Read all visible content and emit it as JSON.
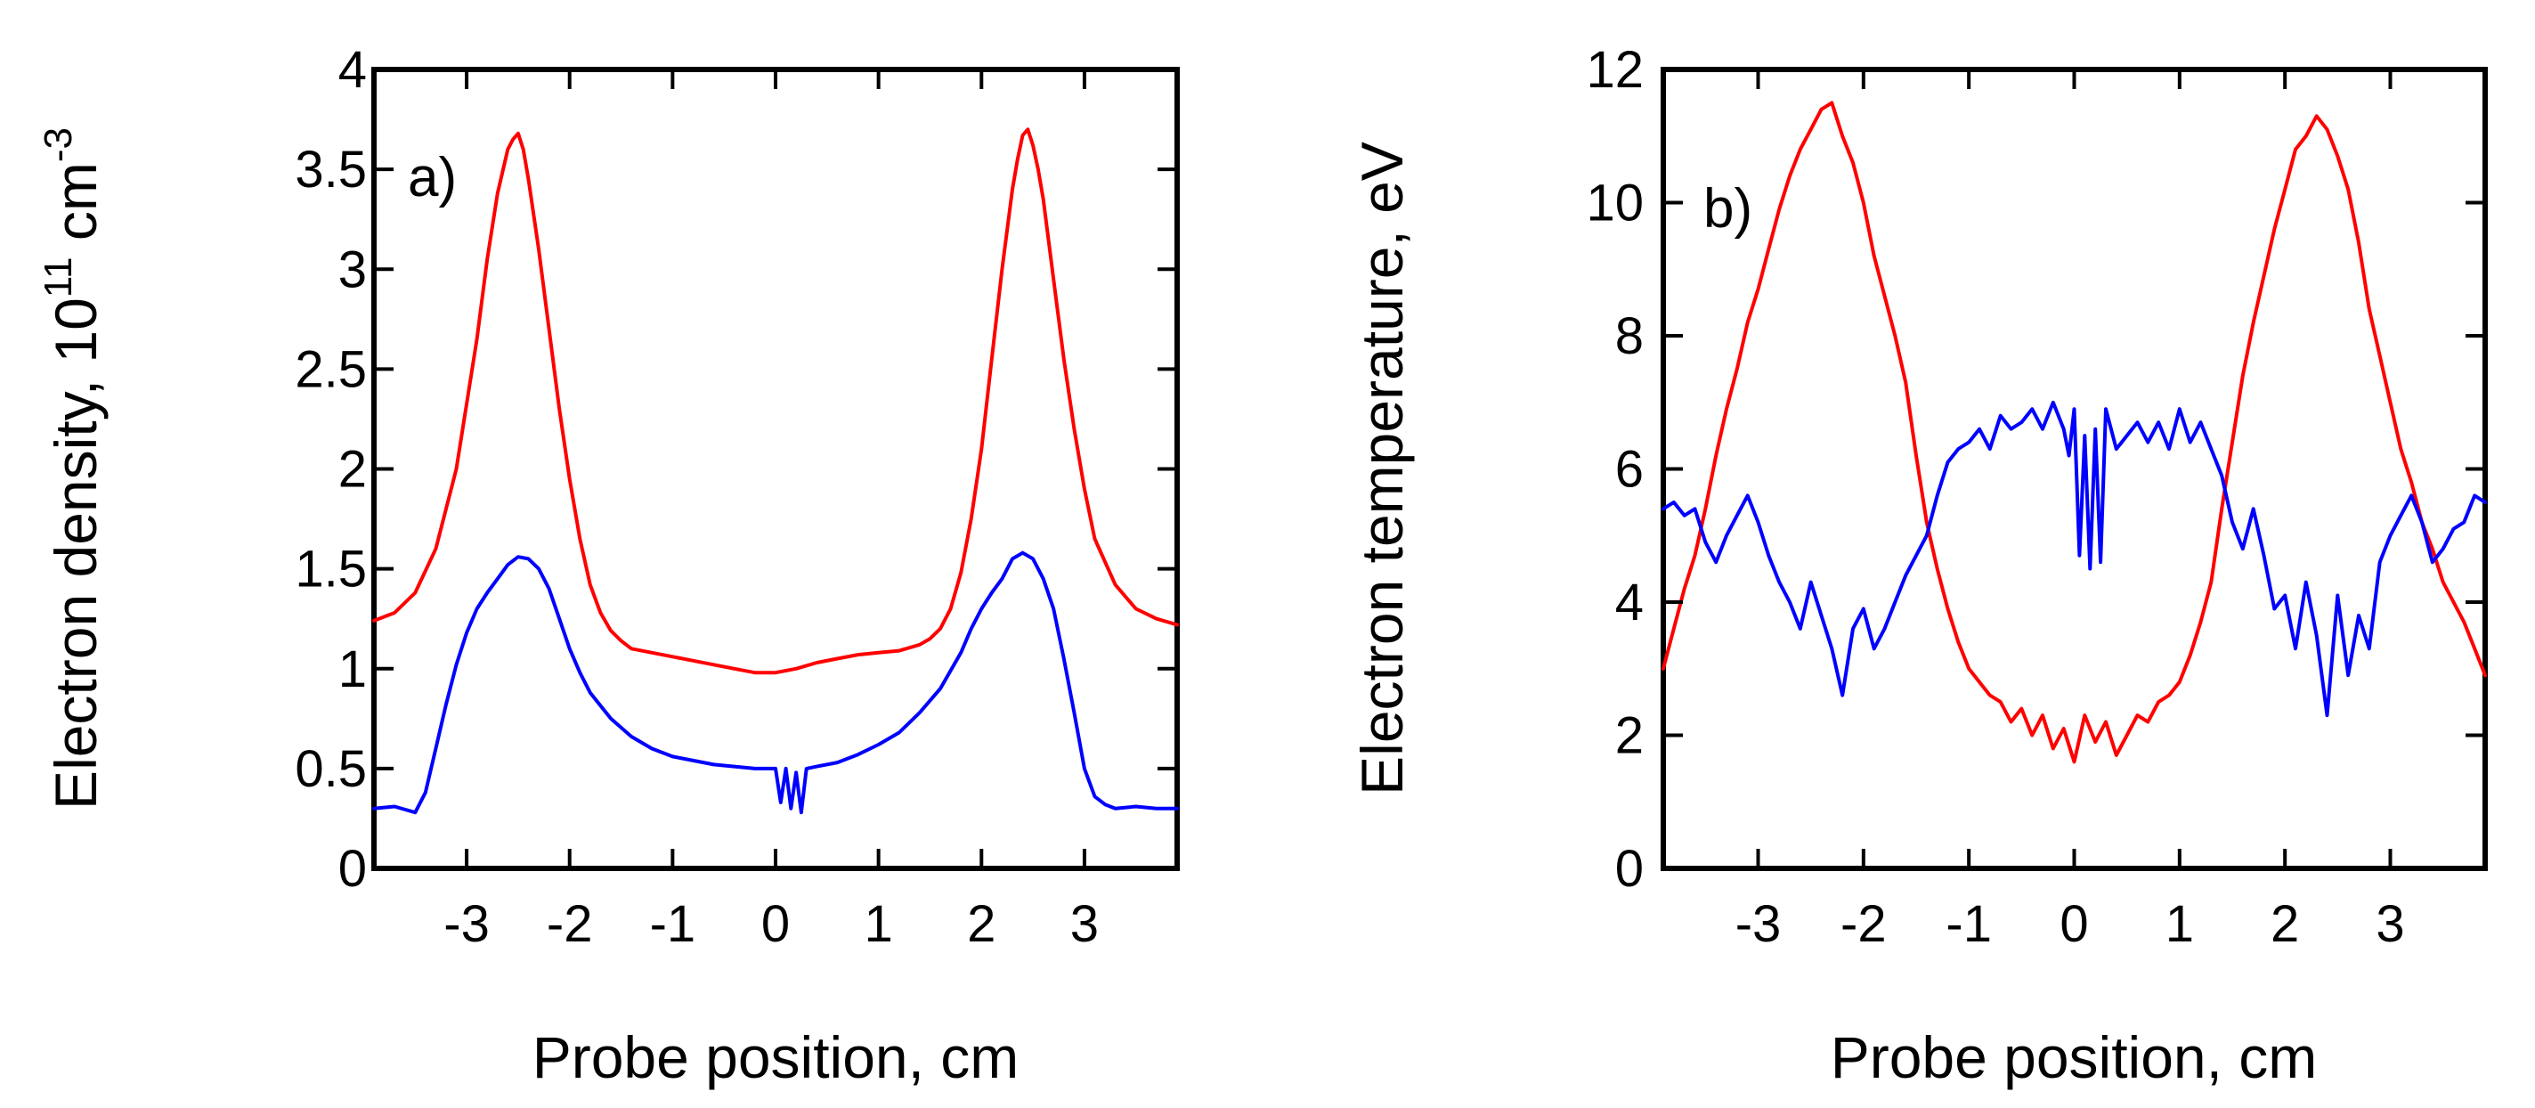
{
  "colors": {
    "red": "#ff0000",
    "blue": "#0000ff",
    "axes": "#000000",
    "background": "#ffffff"
  },
  "chart_data": [
    {
      "id": "a",
      "type": "line",
      "panel_label": "a)",
      "xlabel": "Probe position, cm",
      "ylabel": {
        "prefix": "Electron density, 10",
        "sup1": "11",
        "mid": " cm",
        "sup2": "-3"
      },
      "xlim": [
        -3.9,
        3.9
      ],
      "ylim": [
        0,
        4
      ],
      "xticks": [
        -3,
        -2,
        -1,
        0,
        1,
        2,
        3
      ],
      "xtick_labels": [
        "-3",
        "-2",
        "-1",
        "0",
        "1",
        "2",
        "3"
      ],
      "yticks": [
        0,
        0.5,
        1,
        1.5,
        2,
        2.5,
        3,
        3.5,
        4
      ],
      "ytick_labels": [
        "0",
        "0.5",
        "1",
        "1.5",
        "2",
        "2.5",
        "3",
        "3.5",
        "4"
      ],
      "series": [
        {
          "name": "red",
          "color": "#ff0000",
          "x": [
            -3.9,
            -3.7,
            -3.5,
            -3.3,
            -3.1,
            -2.9,
            -2.8,
            -2.7,
            -2.6,
            -2.55,
            -2.5,
            -2.45,
            -2.4,
            -2.3,
            -2.2,
            -2.1,
            -2.0,
            -1.9,
            -1.8,
            -1.7,
            -1.6,
            -1.5,
            -1.4,
            -1.2,
            -1.0,
            -0.8,
            -0.6,
            -0.4,
            -0.2,
            0.0,
            0.2,
            0.4,
            0.6,
            0.8,
            1.0,
            1.2,
            1.4,
            1.5,
            1.6,
            1.7,
            1.8,
            1.9,
            2.0,
            2.1,
            2.2,
            2.3,
            2.35,
            2.4,
            2.45,
            2.5,
            2.55,
            2.6,
            2.7,
            2.8,
            2.9,
            3.0,
            3.1,
            3.3,
            3.5,
            3.7,
            3.9
          ],
          "y": [
            1.24,
            1.28,
            1.38,
            1.6,
            2.0,
            2.65,
            3.05,
            3.38,
            3.6,
            3.65,
            3.68,
            3.6,
            3.45,
            3.1,
            2.7,
            2.3,
            1.95,
            1.65,
            1.42,
            1.28,
            1.19,
            1.14,
            1.1,
            1.08,
            1.06,
            1.04,
            1.02,
            1.0,
            0.98,
            0.98,
            1.0,
            1.03,
            1.05,
            1.07,
            1.08,
            1.09,
            1.12,
            1.15,
            1.2,
            1.3,
            1.48,
            1.75,
            2.1,
            2.55,
            3.0,
            3.4,
            3.55,
            3.67,
            3.7,
            3.62,
            3.5,
            3.35,
            2.95,
            2.55,
            2.2,
            1.9,
            1.65,
            1.42,
            1.3,
            1.25,
            1.22
          ]
        },
        {
          "name": "blue",
          "color": "#0000ff",
          "x": [
            -3.9,
            -3.7,
            -3.5,
            -3.4,
            -3.3,
            -3.2,
            -3.1,
            -3.0,
            -2.9,
            -2.8,
            -2.7,
            -2.6,
            -2.5,
            -2.4,
            -2.3,
            -2.2,
            -2.1,
            -2.0,
            -1.9,
            -1.8,
            -1.6,
            -1.4,
            -1.2,
            -1.0,
            -0.8,
            -0.6,
            -0.4,
            -0.2,
            0.0,
            0.05,
            0.1,
            0.15,
            0.2,
            0.25,
            0.3,
            0.4,
            0.6,
            0.8,
            1.0,
            1.2,
            1.4,
            1.6,
            1.8,
            1.9,
            2.0,
            2.1,
            2.2,
            2.3,
            2.4,
            2.5,
            2.6,
            2.7,
            2.8,
            2.9,
            3.0,
            3.1,
            3.2,
            3.3,
            3.5,
            3.7,
            3.9
          ],
          "y": [
            0.3,
            0.31,
            0.28,
            0.38,
            0.6,
            0.82,
            1.02,
            1.18,
            1.3,
            1.38,
            1.45,
            1.52,
            1.56,
            1.55,
            1.5,
            1.4,
            1.25,
            1.1,
            0.98,
            0.88,
            0.75,
            0.66,
            0.6,
            0.56,
            0.54,
            0.52,
            0.51,
            0.5,
            0.5,
            0.33,
            0.5,
            0.3,
            0.48,
            0.28,
            0.5,
            0.51,
            0.53,
            0.57,
            0.62,
            0.68,
            0.78,
            0.9,
            1.08,
            1.2,
            1.3,
            1.38,
            1.45,
            1.55,
            1.58,
            1.55,
            1.45,
            1.3,
            1.05,
            0.78,
            0.5,
            0.36,
            0.32,
            0.3,
            0.31,
            0.3,
            0.3
          ]
        }
      ]
    },
    {
      "id": "b",
      "type": "line",
      "panel_label": "b)",
      "xlabel": "Probe position, cm",
      "ylabel": {
        "prefix": "Electron temperature, eV"
      },
      "xlim": [
        -3.9,
        3.9
      ],
      "ylim": [
        0,
        12
      ],
      "xticks": [
        -3,
        -2,
        -1,
        0,
        1,
        2,
        3
      ],
      "xtick_labels": [
        "-3",
        "-2",
        "-1",
        "0",
        "1",
        "2",
        "3"
      ],
      "yticks": [
        0,
        2,
        4,
        6,
        8,
        10,
        12
      ],
      "ytick_labels": [
        "0",
        "2",
        "4",
        "6",
        "8",
        "10",
        "12"
      ],
      "series": [
        {
          "name": "red",
          "color": "#ff0000",
          "x": [
            -3.9,
            -3.8,
            -3.7,
            -3.6,
            -3.5,
            -3.4,
            -3.3,
            -3.2,
            -3.1,
            -3.0,
            -2.9,
            -2.8,
            -2.7,
            -2.6,
            -2.5,
            -2.4,
            -2.3,
            -2.2,
            -2.1,
            -2.0,
            -1.9,
            -1.8,
            -1.7,
            -1.6,
            -1.5,
            -1.4,
            -1.3,
            -1.2,
            -1.1,
            -1.0,
            -0.9,
            -0.8,
            -0.7,
            -0.6,
            -0.5,
            -0.4,
            -0.3,
            -0.2,
            -0.1,
            0.0,
            0.1,
            0.2,
            0.3,
            0.4,
            0.5,
            0.6,
            0.7,
            0.8,
            0.9,
            1.0,
            1.1,
            1.2,
            1.3,
            1.4,
            1.5,
            1.6,
            1.7,
            1.8,
            1.9,
            2.0,
            2.1,
            2.2,
            2.3,
            2.4,
            2.5,
            2.6,
            2.7,
            2.8,
            2.9,
            3.0,
            3.1,
            3.2,
            3.3,
            3.4,
            3.5,
            3.6,
            3.7,
            3.8,
            3.9
          ],
          "y": [
            3.0,
            3.6,
            4.2,
            4.7,
            5.4,
            6.2,
            6.9,
            7.5,
            8.2,
            8.7,
            9.3,
            9.9,
            10.4,
            10.8,
            11.1,
            11.4,
            11.5,
            11.0,
            10.6,
            10.0,
            9.2,
            8.6,
            8.0,
            7.3,
            6.2,
            5.2,
            4.5,
            3.9,
            3.4,
            3.0,
            2.8,
            2.6,
            2.5,
            2.2,
            2.4,
            2.0,
            2.3,
            1.8,
            2.1,
            1.6,
            2.3,
            1.9,
            2.2,
            1.7,
            2.0,
            2.3,
            2.2,
            2.5,
            2.6,
            2.8,
            3.2,
            3.7,
            4.3,
            5.4,
            6.4,
            7.4,
            8.2,
            8.9,
            9.6,
            10.2,
            10.8,
            11.0,
            11.3,
            11.1,
            10.7,
            10.2,
            9.4,
            8.4,
            7.7,
            7.0,
            6.3,
            5.8,
            5.2,
            4.8,
            4.3,
            4.0,
            3.7,
            3.3,
            2.9
          ]
        },
        {
          "name": "blue",
          "color": "#0000ff",
          "x": [
            -3.9,
            -3.8,
            -3.7,
            -3.6,
            -3.5,
            -3.4,
            -3.3,
            -3.2,
            -3.1,
            -3.0,
            -2.9,
            -2.8,
            -2.7,
            -2.6,
            -2.5,
            -2.4,
            -2.3,
            -2.2,
            -2.1,
            -2.0,
            -1.9,
            -1.8,
            -1.7,
            -1.6,
            -1.5,
            -1.4,
            -1.3,
            -1.2,
            -1.1,
            -1.0,
            -0.9,
            -0.8,
            -0.7,
            -0.6,
            -0.5,
            -0.4,
            -0.3,
            -0.2,
            -0.1,
            -0.05,
            0.0,
            0.05,
            0.1,
            0.15,
            0.2,
            0.25,
            0.3,
            0.4,
            0.5,
            0.6,
            0.7,
            0.8,
            0.9,
            1.0,
            1.1,
            1.2,
            1.3,
            1.4,
            1.5,
            1.6,
            1.7,
            1.8,
            1.9,
            2.0,
            2.1,
            2.2,
            2.3,
            2.4,
            2.5,
            2.6,
            2.7,
            2.8,
            2.9,
            3.0,
            3.1,
            3.2,
            3.3,
            3.4,
            3.5,
            3.6,
            3.7,
            3.8,
            3.9
          ],
          "y": [
            5.4,
            5.5,
            5.3,
            5.4,
            4.9,
            4.6,
            5.0,
            5.3,
            5.6,
            5.2,
            4.7,
            4.3,
            4.0,
            3.6,
            4.3,
            3.8,
            3.3,
            2.6,
            3.6,
            3.9,
            3.3,
            3.6,
            4.0,
            4.4,
            4.7,
            5.0,
            5.6,
            6.1,
            6.3,
            6.4,
            6.6,
            6.3,
            6.8,
            6.6,
            6.7,
            6.9,
            6.6,
            7.0,
            6.6,
            6.2,
            6.9,
            4.7,
            6.5,
            4.5,
            6.6,
            4.6,
            6.9,
            6.3,
            6.5,
            6.7,
            6.4,
            6.7,
            6.3,
            6.9,
            6.4,
            6.7,
            6.3,
            5.9,
            5.2,
            4.8,
            5.4,
            4.7,
            3.9,
            4.1,
            3.3,
            4.3,
            3.5,
            2.3,
            4.1,
            2.9,
            3.8,
            3.3,
            4.6,
            5.0,
            5.3,
            5.6,
            5.2,
            4.6,
            4.8,
            5.1,
            5.2,
            5.6,
            5.5
          ]
        }
      ]
    }
  ]
}
